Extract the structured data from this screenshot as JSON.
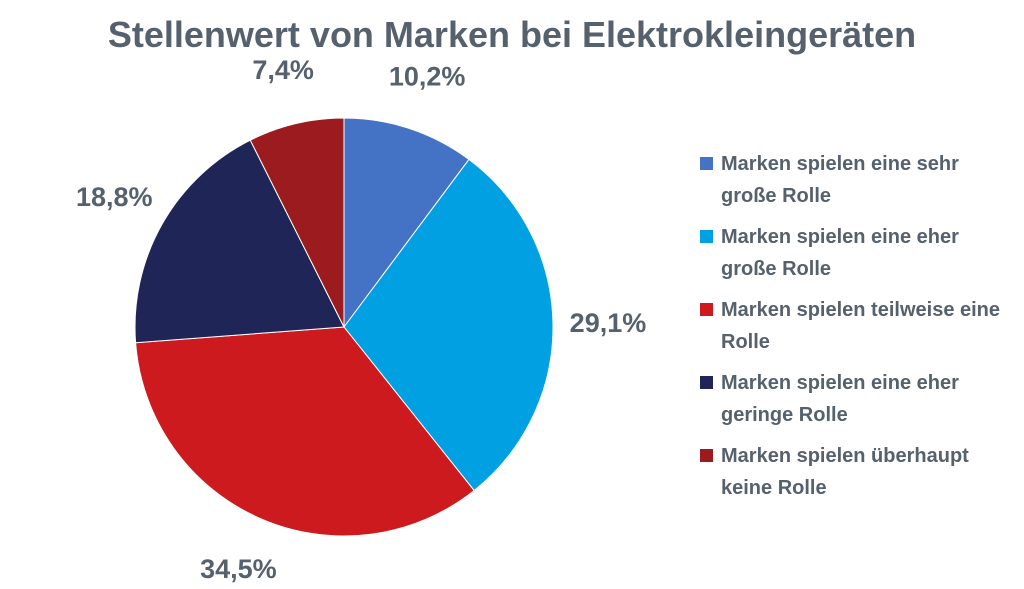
{
  "chart_data": {
    "type": "pie",
    "title": "Stellenwert von Marken bei Elektrokleingeräten",
    "categories": [
      "Marken spielen eine sehr große Rolle",
      "Marken spielen eine eher große Rolle",
      "Marken spielen teilweise eine Rolle",
      "Marken spielen eine eher geringe Rolle",
      "Marken spielen überhaupt keine Rolle"
    ],
    "values": [
      10.2,
      29.1,
      34.5,
      18.8,
      7.4
    ],
    "data_labels": [
      "10,2%",
      "29,1%",
      "34,5%",
      "18,8%",
      "7,4%"
    ],
    "colors": [
      "#4472c4",
      "#00a0e3",
      "#cc1a1f",
      "#1f2657",
      "#9b1b1e"
    ],
    "start_angle_deg": 0,
    "direction": "clockwise",
    "legend_position": "right"
  }
}
